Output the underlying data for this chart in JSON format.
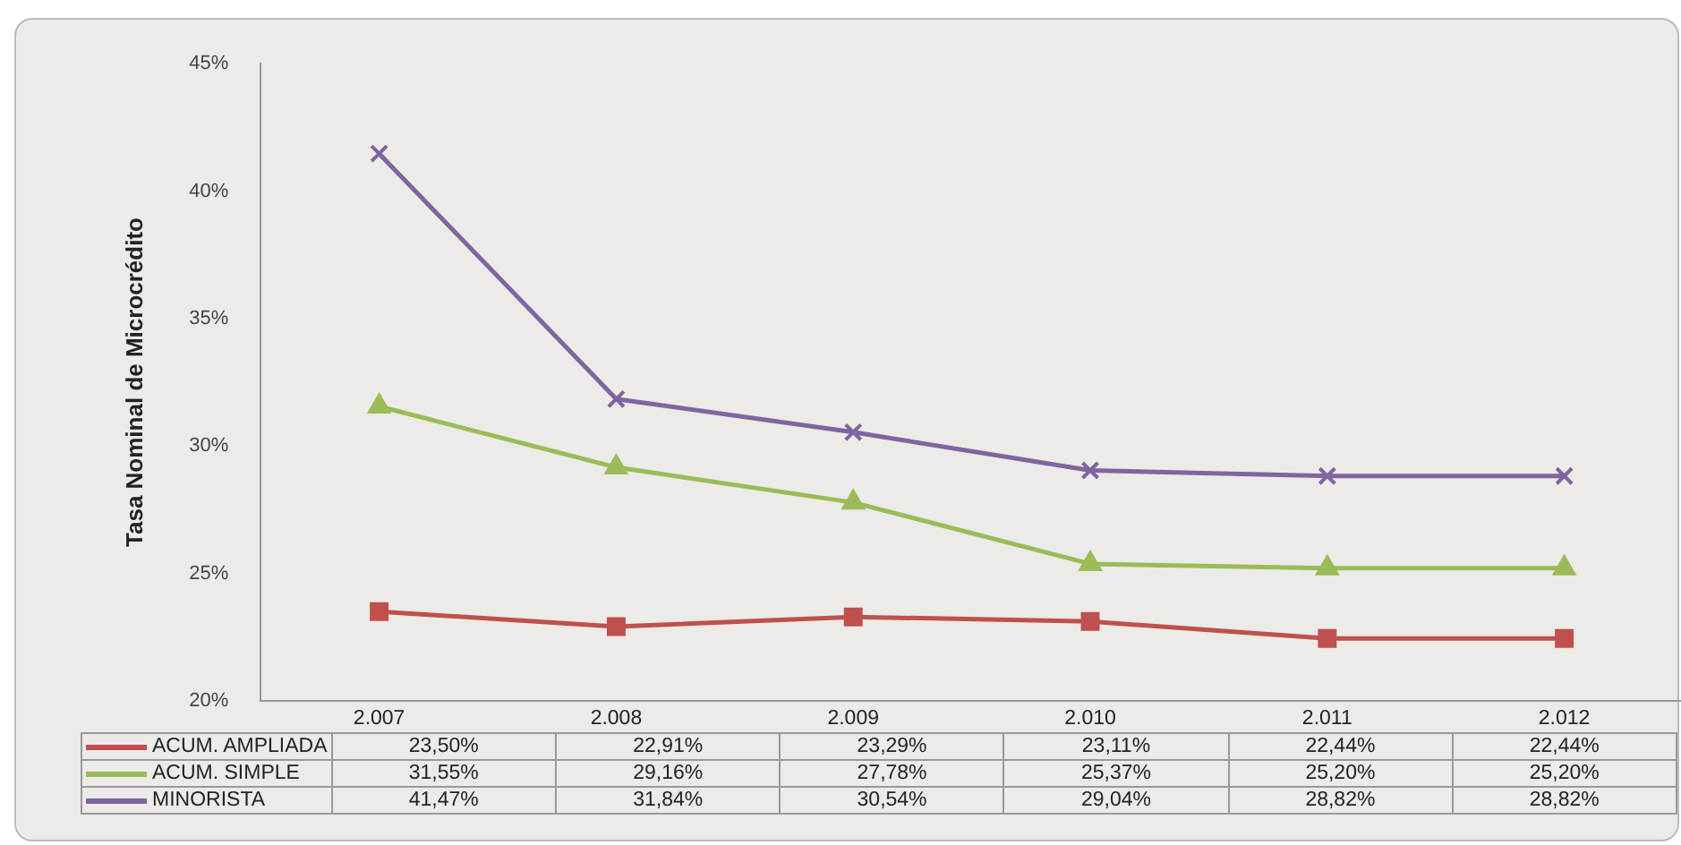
{
  "chart_data": {
    "type": "line",
    "ylabel": "Tasa Nominal de Microcrédito",
    "categories": [
      "2.007",
      "2.008",
      "2.009",
      "2.010",
      "2.011",
      "2.012"
    ],
    "series": [
      {
        "name": "ACUM. AMPLIADA",
        "color": "#c0504d",
        "marker": "square",
        "values": [
          23.5,
          22.91,
          23.29,
          23.11,
          22.44,
          22.44
        ],
        "value_labels": [
          "23,50%",
          "22,91%",
          "23,29%",
          "23,11%",
          "22,44%",
          "22,44%"
        ]
      },
      {
        "name": "ACUM. SIMPLE",
        "color": "#9bbb59",
        "marker": "triangle",
        "values": [
          31.55,
          29.16,
          27.78,
          25.37,
          25.2,
          25.2
        ],
        "value_labels": [
          "31,55%",
          "29,16%",
          "27,78%",
          "25,37%",
          "25,20%",
          "25,20%"
        ]
      },
      {
        "name": "MINORISTA",
        "color": "#8064a2",
        "marker": "cross",
        "values": [
          41.47,
          31.84,
          30.54,
          29.04,
          28.82,
          28.82
        ],
        "value_labels": [
          "41,47%",
          "31,84%",
          "30,54%",
          "29,04%",
          "28,82%",
          "28,82%"
        ]
      }
    ],
    "ylim": [
      20,
      45
    ],
    "yticks": [
      {
        "value": 20,
        "label": "20%"
      },
      {
        "value": 25,
        "label": "25%"
      },
      {
        "value": 30,
        "label": "30%"
      },
      {
        "value": 35,
        "label": "35%"
      },
      {
        "value": 40,
        "label": "40%"
      },
      {
        "value": 45,
        "label": "45%"
      }
    ],
    "grid": false,
    "legend": "bottom",
    "line_style": "solid"
  }
}
